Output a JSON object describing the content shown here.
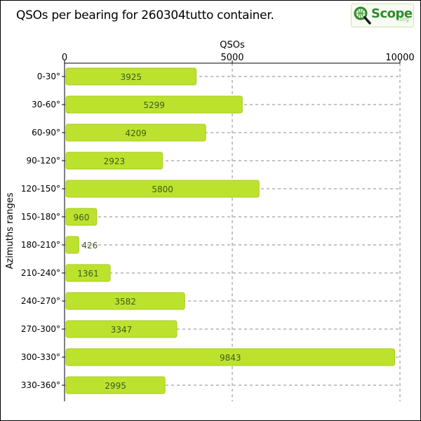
{
  "colors": {
    "bar": "#bde22e",
    "bar_stroke": "#a6cb1f",
    "grid": "#888888",
    "value_text": "#3d5a1e",
    "logo_green": "#2e8b2e"
  },
  "logo": {
    "brand": "Scope",
    "suffix": ".org",
    "icon": "qso-globe-magnifier-icon"
  },
  "chart_data": {
    "type": "bar",
    "orientation": "horizontal",
    "title": "QSOs per bearing for 260304tutto container.",
    "xlabel": "QSOs",
    "ylabel": "Azimuths ranges",
    "xlim": [
      0,
      10000
    ],
    "xticks": [
      "0",
      "5000",
      "10000"
    ],
    "x_axis_position": "top",
    "grid": true,
    "categories": [
      "0-30°",
      "30-60°",
      "60-90°",
      "90-120°",
      "120-150°",
      "150-180°",
      "180-210°",
      "210-240°",
      "240-270°",
      "270-300°",
      "300-330°",
      "330-360°"
    ],
    "values": [
      3925,
      5299,
      4209,
      2923,
      5800,
      960,
      426,
      1361,
      3582,
      3347,
      9843,
      2995
    ],
    "value_labels": [
      "3925",
      "5299",
      "4209",
      "2923",
      "5800",
      "960",
      "426",
      "1361",
      "3582",
      "3347",
      "9843",
      "2995"
    ]
  }
}
